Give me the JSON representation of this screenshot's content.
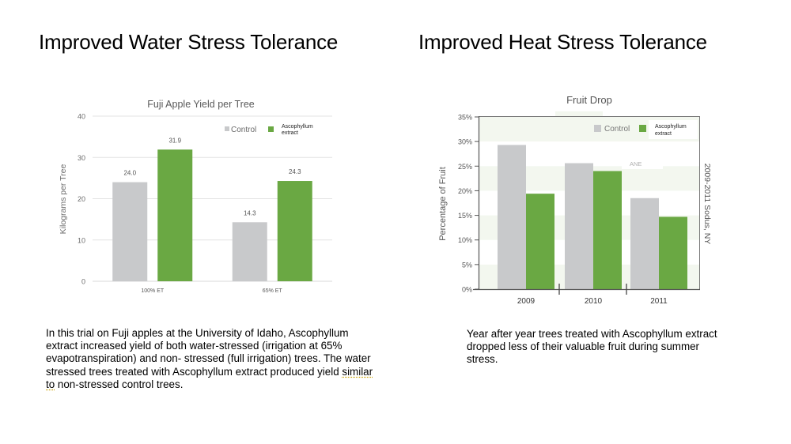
{
  "slide": {
    "left_heading": "Improved Water Stress Tolerance",
    "right_heading": "Improved Heat Stress Tolerance",
    "left_paragraph_parts": [
      "In this trial on Fuji apples at the University of Idaho, Ascophyllum extract increased yield of both water-stressed (irrigation at 65% evapotranspiration) and non- stressed (full irrigation) trees. The water stressed trees treated with Ascophyllum extract produced yield ",
      "similar to",
      " non-stressed control trees."
    ],
    "right_paragraph": "Year after year trees treated with Ascophyllum extract dropped less of their valuable fruit during summer stress."
  },
  "colors": {
    "control": "#c8c9cb",
    "extract": "#6aa843",
    "gridline": "#e3e3e3",
    "band": "#f3f7ef",
    "axis_text": "#6b6b6b"
  },
  "chart_data": [
    {
      "type": "bar",
      "title": "Fuji Apple Yield per Tree",
      "xlabel": "",
      "ylabel": "Kilograms per Tree",
      "categories": [
        "100% ET",
        "65% ET"
      ],
      "series": [
        {
          "name": "Control",
          "values": [
            24.0,
            14.3
          ],
          "labels": [
            "24.0",
            "14.3"
          ]
        },
        {
          "name": "Ascophyllum extract",
          "values": [
            31.9,
            24.3
          ],
          "labels": [
            "31.9",
            "24.3"
          ]
        }
      ],
      "ylim": [
        0,
        40
      ],
      "yticks": [
        0,
        10,
        20,
        30,
        40
      ],
      "ytick_labels": [
        "0",
        "10",
        "20",
        "30",
        "40"
      ],
      "grid": true,
      "legend": {
        "position": "top-right",
        "entries": [
          "Control",
          "Ascophyllum extract"
        ]
      }
    },
    {
      "type": "bar",
      "title": "Fruit Drop",
      "xlabel": "",
      "ylabel": "Percentage of Fruit",
      "categories": [
        "2009",
        "2010",
        "2011"
      ],
      "series": [
        {
          "name": "Control",
          "values": [
            29.3,
            25.6,
            18.5
          ]
        },
        {
          "name": "Ascophyllum extract",
          "values": [
            19.4,
            24.0,
            14.7
          ]
        }
      ],
      "ylim": [
        0,
        35
      ],
      "yticks": [
        0,
        5,
        10,
        15,
        20,
        25,
        30,
        35
      ],
      "ytick_labels": [
        "0%",
        "5%",
        "10%",
        "15%",
        "20%",
        "25%",
        "30%",
        "35%"
      ],
      "grid": "alternating bands",
      "legend": {
        "position": "top-right",
        "entries": [
          "Control",
          "Ascophyllum extract"
        ]
      },
      "annotations": [
        "ANE",
        "2009-2011 Sodus, NY"
      ]
    }
  ]
}
